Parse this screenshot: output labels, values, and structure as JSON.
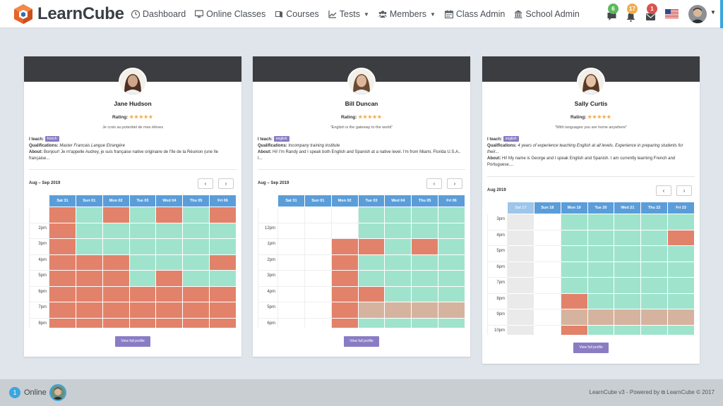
{
  "brand": {
    "name": "LearnCube"
  },
  "nav": [
    {
      "label": "Dashboard",
      "icon": "dashboard-icon",
      "caret": false
    },
    {
      "label": "Online Classes",
      "icon": "monitor-icon",
      "caret": false
    },
    {
      "label": "Courses",
      "icon": "book-icon",
      "caret": false
    },
    {
      "label": "Tests",
      "icon": "chart-icon",
      "caret": true
    },
    {
      "label": "Members",
      "icon": "users-icon",
      "caret": true
    },
    {
      "label": "Class Admin",
      "icon": "calendar-icon",
      "caret": false
    },
    {
      "label": "School Admin",
      "icon": "building-icon",
      "caret": false
    }
  ],
  "notifications": [
    {
      "name": "messages-notification",
      "count": "6",
      "color": "#5cb85c",
      "icon": "chat-icon"
    },
    {
      "name": "alerts-notification",
      "count": "17",
      "color": "#f0ad4e",
      "icon": "bell-icon"
    },
    {
      "name": "inbox-notification",
      "count": "1",
      "color": "#d9534f",
      "icon": "envelope-icon"
    }
  ],
  "teachers": [
    {
      "name": "Jane Hudson",
      "rating_label": "Rating:",
      "stars": "★★★★★",
      "quote": "Je crois au potentiel de mes élèves",
      "teach_label": "I teach:",
      "language": "french",
      "qual_label": "Qualifications:",
      "qualifications": "Master Francais Langue Etrangère",
      "about_label": "About:",
      "about": "Bonjour! Je m'appelle Audrey, je suis française native originaire de l'île de la Réunion (une île française...",
      "range": "Aug – Sep 2019",
      "prev": "‹",
      "next": "›",
      "days": [
        "Sat 31",
        "Sun 01",
        "Mon 02",
        "Tue 03",
        "Wed 04",
        "Thu 05",
        "Fri 06"
      ],
      "days_dim": [
        false,
        false,
        false,
        false,
        false,
        false,
        false
      ],
      "times": [
        "",
        "2pm",
        "3pm",
        "4pm",
        "5pm",
        "6pm",
        "7pm",
        "8pm",
        ""
      ],
      "slots": [
        [
          "r",
          "a",
          "r",
          "a",
          "r",
          "a",
          "r"
        ],
        [
          "r",
          "a",
          "a",
          "a",
          "a",
          "a",
          "a"
        ],
        [
          "r",
          "a",
          "a",
          "a",
          "a",
          "a",
          "a"
        ],
        [
          "r",
          "r",
          "r",
          "a",
          "a",
          "a",
          "r"
        ],
        [
          "r",
          "r",
          "r",
          "a",
          "r",
          "a",
          "a"
        ],
        [
          "r",
          "r",
          "r",
          "r",
          "r",
          "r",
          "r"
        ],
        [
          "r",
          "r",
          "r",
          "r",
          "r",
          "r",
          "r"
        ],
        [
          "r",
          "r",
          "r",
          "r",
          "r",
          "r",
          "r"
        ],
        [
          "r",
          "r",
          "r",
          "r",
          "r",
          "r",
          "r"
        ]
      ],
      "button": "View full profile"
    },
    {
      "name": "Bill Duncan",
      "rating_label": "Rating:",
      "stars": "★★★★★",
      "quote": "\"English is the gateway to the world\"",
      "teach_label": "I teach:",
      "language": "english",
      "qual_label": "Qualifications:",
      "qualifications": "Incompany training institute",
      "about_label": "About:",
      "about": "Hi! I'm Randy and I speak both English and Spanish at a native level. I'm from Miami, Florida U.S.A.. I...",
      "range": "Aug – Sep 2019",
      "prev": "‹",
      "next": "›",
      "days": [
        "Sat 31",
        "Sun 01",
        "Mon 02",
        "Tue 03",
        "Wed 04",
        "Thu 05",
        "Fri 06"
      ],
      "days_dim": [
        false,
        false,
        false,
        false,
        false,
        false,
        false
      ],
      "times": [
        "",
        "12pm",
        "1pm",
        "2pm",
        "3pm",
        "4pm",
        "5pm",
        "6pm",
        ""
      ],
      "slots": [
        [
          "w",
          "w",
          "w",
          "a",
          "a",
          "a",
          "a"
        ],
        [
          "w",
          "w",
          "w",
          "a",
          "a",
          "a",
          "a"
        ],
        [
          "w",
          "w",
          "r",
          "r",
          "a",
          "r",
          "a"
        ],
        [
          "w",
          "w",
          "r",
          "a",
          "a",
          "a",
          "a"
        ],
        [
          "w",
          "w",
          "r",
          "a",
          "a",
          "a",
          "a"
        ],
        [
          "w",
          "w",
          "r",
          "r",
          "a",
          "a",
          "a"
        ],
        [
          "w",
          "w",
          "r",
          "t",
          "t",
          "t",
          "t"
        ],
        [
          "w",
          "w",
          "r",
          "a",
          "a",
          "a",
          "a"
        ],
        [
          "w",
          "w",
          "r",
          "a",
          "a",
          "a",
          "a"
        ]
      ],
      "button": "View full profile"
    },
    {
      "name": "Sally Curtis",
      "rating_label": "Rating:",
      "stars": "★★★★★",
      "quote": "\"With languages you are home anywhere\"",
      "teach_label": "I teach:",
      "language": "english",
      "qual_label": "Qualifications:",
      "qualifications": "4 years of experience teaching English at all levels. Experience in preparing students for their...",
      "about_label": "About:",
      "about": "Hi! My name is George and I speak English and Spanish. I am currently learning French and Portuguese....",
      "range": "Aug 2019",
      "prev": "‹",
      "next": "›",
      "days": [
        "Sat 17",
        "Sun 18",
        "Mon 19",
        "Tue 20",
        "Wed 21",
        "Thu 22",
        "Fri 23"
      ],
      "days_dim": [
        true,
        false,
        false,
        false,
        false,
        false,
        false
      ],
      "times": [
        "3pm",
        "4pm",
        "5pm",
        "6pm",
        "7pm",
        "8pm",
        "9pm",
        "10pm"
      ],
      "slots": [
        [
          "g",
          "w",
          "a",
          "a",
          "a",
          "a",
          "a"
        ],
        [
          "g",
          "w",
          "a",
          "a",
          "a",
          "a",
          "r"
        ],
        [
          "g",
          "w",
          "a",
          "a",
          "a",
          "a",
          "a"
        ],
        [
          "g",
          "w",
          "a",
          "a",
          "a",
          "a",
          "a"
        ],
        [
          "g",
          "w",
          "a",
          "a",
          "a",
          "a",
          "a"
        ],
        [
          "g",
          "w",
          "r",
          "a",
          "a",
          "a",
          "a"
        ],
        [
          "g",
          "w",
          "t",
          "t",
          "t",
          "t",
          "t"
        ],
        [
          "g",
          "w",
          "r",
          "a",
          "a",
          "a",
          "a"
        ]
      ],
      "button": "View full profile"
    }
  ],
  "footer": {
    "online_count": "1",
    "online_label": "Online",
    "credit": "LearnCube v3 - Powered by ⧉ LearnCube © 2017"
  },
  "colors": {
    "accent": "#3aa6dd",
    "available": "#9fe3cd",
    "booked": "#e2826a",
    "pending": "#d6b39f",
    "header": "#3b3d41",
    "button": "#8a7cc4"
  }
}
